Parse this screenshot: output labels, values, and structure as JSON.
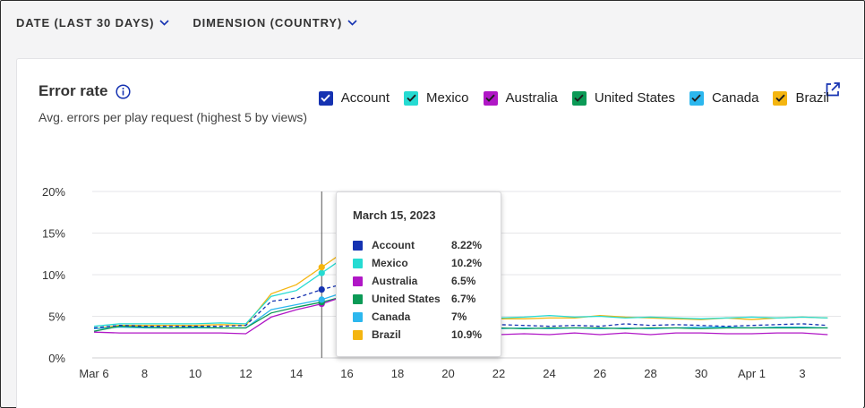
{
  "filters": [
    {
      "label": "DATE (LAST 30 DAYS)"
    },
    {
      "label": "DIMENSION (COUNTRY)"
    }
  ],
  "card": {
    "title": "Error rate",
    "subtitle": "Avg. errors per play request (highest 5 by views)"
  },
  "icons": {
    "info": "info-icon",
    "share": "share-icon",
    "dropdown": "chevron-down-icon",
    "check": "check-icon"
  },
  "legend": [
    {
      "name": "Account",
      "color": "#1532b1"
    },
    {
      "name": "Mexico",
      "color": "#25dbd2"
    },
    {
      "name": "Australia",
      "color": "#b017c6"
    },
    {
      "name": "United States",
      "color": "#0b9a56"
    },
    {
      "name": "Canada",
      "color": "#2cb7ee"
    },
    {
      "name": "Brazil",
      "color": "#f4b510"
    }
  ],
  "tooltip": {
    "date": "March 15, 2023",
    "rows": [
      {
        "name": "Account",
        "value": "8.22%",
        "color": "#1532b1"
      },
      {
        "name": "Mexico",
        "value": "10.2%",
        "color": "#25dbd2"
      },
      {
        "name": "Australia",
        "value": "6.5%",
        "color": "#b017c6"
      },
      {
        "name": "United States",
        "value": "6.7%",
        "color": "#0b9a56"
      },
      {
        "name": "Canada",
        "value": "7%",
        "color": "#2cb7ee"
      },
      {
        "name": "Brazil",
        "value": "10.9%",
        "color": "#f4b510"
      }
    ]
  },
  "chart_data": {
    "type": "line",
    "title": "Error rate",
    "subtitle": "Avg. errors per play request (highest 5 by views)",
    "x": [
      "Mar 6",
      "7",
      "8",
      "9",
      "10",
      "11",
      "12",
      "13",
      "14",
      "15",
      "16",
      "17",
      "18",
      "19",
      "20",
      "21",
      "22",
      "23",
      "24",
      "25",
      "26",
      "27",
      "28",
      "29",
      "30",
      "31",
      "Apr 1",
      "2",
      "3",
      "4"
    ],
    "x_tick_labels": [
      "Mar 6",
      "8",
      "10",
      "12",
      "14",
      "16",
      "18",
      "20",
      "22",
      "24",
      "26",
      "28",
      "30",
      "Apr 1",
      "3"
    ],
    "y_ticks": [
      "0%",
      "5%",
      "10%",
      "15%",
      "20%"
    ],
    "ylim": [
      0,
      20
    ],
    "grid": true,
    "legend_position": "top-right",
    "highlight_x": "15",
    "series": [
      {
        "name": "Account",
        "color": "#1532b1",
        "dashed": true,
        "values": [
          3.6,
          3.9,
          3.8,
          3.8,
          3.8,
          3.8,
          3.9,
          6.8,
          7.2,
          8.22,
          9.0,
          9.2,
          9.2,
          5.0,
          4.8,
          4.3,
          4.0,
          3.9,
          3.8,
          3.9,
          3.8,
          4.1,
          3.9,
          4.0,
          3.9,
          3.8,
          3.9,
          4.0,
          4.1,
          3.9
        ]
      },
      {
        "name": "Mexico",
        "color": "#25dbd2",
        "values": [
          3.8,
          4.1,
          4.1,
          4.1,
          4.1,
          4.2,
          4.1,
          7.4,
          8.1,
          10.2,
          12.3,
          12.1,
          12.0,
          4.9,
          4.8,
          4.9,
          4.8,
          4.9,
          5.1,
          4.9,
          5.0,
          4.8,
          4.9,
          4.8,
          4.7,
          4.8,
          4.9,
          4.8,
          4.9,
          4.8
        ]
      },
      {
        "name": "Australia",
        "color": "#b017c6",
        "values": [
          3.1,
          3.0,
          3.0,
          3.0,
          3.0,
          3.0,
          2.9,
          4.9,
          5.8,
          6.5,
          7.5,
          7.4,
          7.3,
          3.2,
          3.0,
          3.0,
          2.8,
          2.9,
          2.8,
          3.0,
          2.8,
          3.0,
          2.8,
          3.0,
          3.0,
          2.9,
          2.9,
          3.0,
          3.0,
          2.8
        ]
      },
      {
        "name": "United States",
        "color": "#0b9a56",
        "values": [
          3.2,
          3.8,
          3.7,
          3.6,
          3.7,
          3.6,
          3.6,
          5.4,
          6.1,
          6.7,
          7.5,
          7.4,
          7.3,
          3.8,
          3.6,
          3.6,
          3.6,
          3.5,
          3.6,
          3.6,
          3.6,
          3.5,
          3.6,
          3.6,
          3.5,
          3.6,
          3.6,
          3.6,
          3.6,
          3.6
        ]
      },
      {
        "name": "Canada",
        "color": "#2cb7ee",
        "values": [
          3.5,
          3.7,
          3.6,
          3.6,
          3.6,
          3.6,
          3.6,
          5.8,
          6.4,
          7.0,
          8.0,
          7.8,
          7.7,
          3.6,
          3.7,
          3.6,
          3.5,
          3.6,
          3.5,
          3.6,
          3.5,
          3.6,
          3.5,
          3.6,
          3.7,
          3.7,
          3.6,
          3.7,
          3.7,
          3.6
        ]
      },
      {
        "name": "Brazil",
        "color": "#f4b510",
        "values": [
          3.5,
          3.9,
          3.9,
          3.9,
          3.9,
          4.0,
          3.9,
          7.7,
          8.8,
          10.9,
          13.0,
          12.8,
          12.6,
          4.8,
          4.9,
          4.9,
          4.7,
          4.7,
          4.8,
          4.8,
          5.1,
          4.9,
          4.8,
          4.7,
          4.6,
          4.8,
          4.6,
          4.8,
          4.9,
          4.8
        ]
      }
    ]
  }
}
